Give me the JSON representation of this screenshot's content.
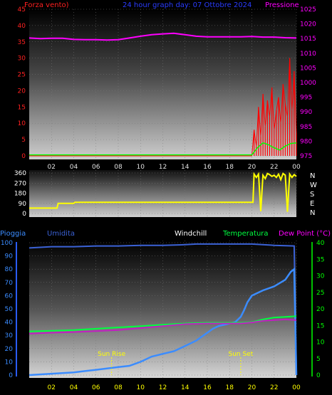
{
  "colors": {
    "wind": "#ff2020",
    "gust": "#ff0000",
    "wind_avg": "#00ff00",
    "pressure": "#ff00ff",
    "direction": "#ffff00",
    "rain": "#3b8cff",
    "humidity": "#3b62d6",
    "windchill": "#ffffff",
    "temperature": "#00ff40",
    "dewpoint": "#c020c0",
    "axis_right_green": "#00ff00",
    "tick_label_yellow": "#ffff00"
  },
  "chart_data": [
    {
      "id": "wind-pressure",
      "type": "line",
      "title": "24 hour graph day: 07 Ottobre 2024",
      "left_axis_label": "Forza vento)",
      "right_axis_label": "Pressione",
      "left_ticks": [
        "0",
        "5",
        "10",
        "15",
        "20",
        "25",
        "30",
        "35",
        "40",
        "45"
      ],
      "left_ylim": [
        0,
        45
      ],
      "right_ticks": [
        "975",
        "980",
        "985",
        "990",
        "995",
        "1000",
        "1005",
        "1010",
        "1015",
        "1020",
        "1025"
      ],
      "right_ylim": [
        975,
        1025
      ],
      "x_ticks": [
        "02",
        "04",
        "06",
        "08",
        "10",
        "12",
        "14",
        "16",
        "18",
        "20",
        "22",
        "00"
      ],
      "xlim": [
        0,
        24
      ],
      "series": [
        {
          "key": "pressure",
          "axis": "right",
          "x": [
            0,
            1,
            2,
            3,
            4,
            5,
            6,
            7,
            8,
            9,
            10,
            11,
            12,
            13,
            14,
            15,
            16,
            17,
            18,
            19,
            20,
            21,
            22,
            23,
            24
          ],
          "values": [
            1015.2,
            1015,
            1015.1,
            1015.1,
            1014.7,
            1014.6,
            1014.6,
            1014.5,
            1014.6,
            1015.2,
            1015.8,
            1016.3,
            1016.6,
            1016.8,
            1016.3,
            1015.8,
            1015.6,
            1015.6,
            1015.6,
            1015.6,
            1015.7,
            1015.5,
            1015.5,
            1015.3,
            1015.2
          ]
        },
        {
          "key": "gust",
          "axis": "left",
          "x": [
            0,
            20,
            20.2,
            20.4,
            20.6,
            20.8,
            21,
            21.2,
            21.4,
            21.6,
            21.8,
            22,
            22.2,
            22.4,
            22.6,
            22.8,
            23,
            23.2,
            23.4,
            23.6,
            23.8,
            24
          ],
          "values": [
            0,
            0,
            8,
            3,
            15,
            6,
            19,
            9,
            17,
            12,
            21,
            8,
            14,
            18,
            10,
            22,
            16,
            12,
            30,
            14,
            26,
            7
          ]
        },
        {
          "key": "wind_avg",
          "axis": "left",
          "x": [
            0,
            20,
            20.5,
            21,
            21.5,
            22,
            22.5,
            23,
            23.5,
            24
          ],
          "values": [
            0.3,
            0.3,
            2.5,
            4,
            3.4,
            2.5,
            1.8,
            3,
            3.8,
            4
          ]
        }
      ]
    },
    {
      "id": "wind-direction",
      "type": "line",
      "left_ticks": [
        "0",
        "90",
        "180",
        "270",
        "360"
      ],
      "ylim": [
        0,
        360
      ],
      "right_labels": [
        "N",
        "W",
        "S",
        "E",
        "N"
      ],
      "x": [
        0,
        2.5,
        2.6,
        4,
        4.1,
        4.2,
        20.1,
        20.2,
        20.4,
        20.6,
        20.8,
        21,
        21.2,
        21.4,
        21.6,
        21.8,
        22,
        22.2,
        22.4,
        22.6,
        22.8,
        23,
        23.2,
        23.4,
        23.6,
        23.8,
        24
      ],
      "values": [
        48,
        48,
        90,
        90,
        100,
        100,
        100,
        350,
        320,
        350,
        20,
        340,
        310,
        355,
        345,
        330,
        340,
        320,
        350,
        300,
        355,
        340,
        15,
        350,
        320,
        345,
        330
      ]
    },
    {
      "id": "temp-rain",
      "type": "line",
      "labels": {
        "pioggia": "Pioggia",
        "umidita": "Umidita",
        "windchill": "Windchill",
        "temperatura": "Temperatura",
        "dewpoint": "Dew Point (°C)"
      },
      "left_ticks": [
        "0",
        "10",
        "20",
        "30",
        "40",
        "50",
        "60",
        "70",
        "80",
        "90",
        "100"
      ],
      "left_ylim": [
        0,
        100
      ],
      "right_ticks": [
        "0",
        "5",
        "10",
        "15",
        "20",
        "25",
        "30",
        "35",
        "40"
      ],
      "right_ylim": [
        0,
        40
      ],
      "x_ticks": [
        "02",
        "04",
        "06",
        "08",
        "10",
        "12",
        "14",
        "16",
        "18",
        "20",
        "22",
        "00"
      ],
      "xlim": [
        0,
        24
      ],
      "annotations": [
        {
          "label": "Sun Rise",
          "x": 7.4
        },
        {
          "label": "Sun Set",
          "x": 19
        }
      ],
      "series": [
        {
          "key": "humidity",
          "axis": "left",
          "x": [
            0,
            2,
            4,
            6,
            8,
            10,
            12,
            14,
            15,
            16,
            18,
            20,
            22,
            23.8,
            24
          ],
          "values": [
            96,
            97,
            97,
            97.5,
            97.5,
            98,
            98,
            98.5,
            99,
            99,
            99,
            99,
            98,
            97.5,
            0
          ]
        },
        {
          "key": "rain",
          "axis": "right",
          "x": [
            0,
            2,
            4,
            5,
            6,
            8,
            9,
            10,
            11,
            12,
            13,
            14,
            15,
            16,
            16.5,
            17,
            18,
            18.5,
            19,
            19.3,
            19.6,
            20,
            21,
            22,
            23,
            23.5,
            23.8,
            24
          ],
          "values": [
            0,
            0.4,
            0.8,
            1.2,
            1.6,
            2.4,
            2.8,
            4,
            5.6,
            6.4,
            7.2,
            8.8,
            10.4,
            12.8,
            14,
            14.8,
            15.6,
            16,
            17.6,
            19.6,
            22,
            24,
            25.6,
            26.8,
            28.8,
            31.2,
            32,
            0
          ]
        },
        {
          "key": "temperature",
          "axis": "right",
          "x": [
            0,
            2,
            4,
            6,
            8,
            10,
            12,
            14,
            16,
            18,
            19,
            20,
            21,
            22,
            23,
            24
          ],
          "values": [
            13.2,
            13.4,
            13.6,
            14,
            14.4,
            14.8,
            15.2,
            15.6,
            15.8,
            15.8,
            15.8,
            16,
            16.8,
            17.4,
            17.6,
            17.8
          ]
        },
        {
          "key": "dewpoint",
          "axis": "right",
          "x": [
            0,
            2,
            4,
            6,
            8,
            10,
            12,
            14,
            16,
            18,
            19,
            20,
            21,
            22,
            23,
            24
          ],
          "values": [
            12.5,
            12.8,
            13,
            13.3,
            13.6,
            14.2,
            14.8,
            15.4,
            15.6,
            15.6,
            15.6,
            15.9,
            16.4,
            16.6,
            16.8,
            16.6
          ]
        }
      ]
    }
  ]
}
